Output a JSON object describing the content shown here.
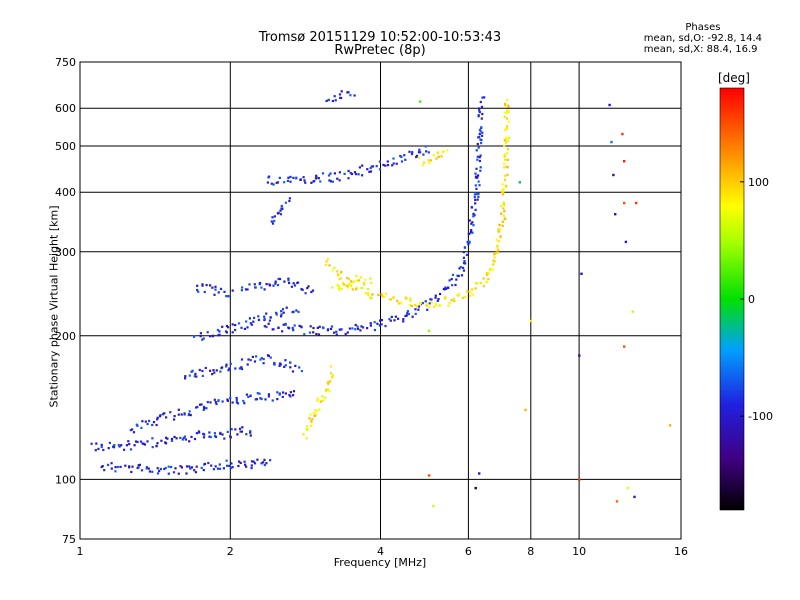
{
  "chart_data": {
    "type": "scatter",
    "title": "Tromsø 20151129 10:52:00-10:53:43",
    "subtitle": "RwPretec (8p)",
    "xlabel": "Frequency [MHz]",
    "ylabel": "Stationary phase Virtual Height [km]",
    "x_scale": "log",
    "y_scale": "log",
    "xlim": [
      1,
      16
    ],
    "ylim": [
      75,
      750
    ],
    "xticks": [
      1,
      2,
      4,
      6,
      8,
      10,
      16
    ],
    "yticks": [
      75,
      100,
      200,
      300,
      400,
      500,
      600,
      750
    ],
    "grid": true,
    "phase_stats": {
      "heading": "Phases",
      "line_o": "mean, sd,O: -92.8, 14.4",
      "line_x": "mean, sd,X:  88.4, 16.9"
    },
    "colorbar": {
      "label": "[deg]",
      "range": [
        -180,
        180
      ],
      "ticks": [
        100,
        0,
        -100
      ]
    },
    "series": [
      {
        "mode": "O",
        "phase": -90,
        "color": "#2040e0",
        "traces": [
          {
            "x": [
              1.1,
              1.3,
              1.5,
              1.7,
              1.9,
              2.0,
              2.2,
              2.4
            ],
            "y": [
              107,
              106,
              105,
              105,
              108,
              108,
              108,
              109
            ]
          },
          {
            "x": [
              1.05,
              1.2,
              1.4,
              1.6,
              1.8,
              2.0,
              2.1,
              2.2
            ],
            "y": [
              118,
              118,
              120,
              122,
              125,
              125,
              127,
              125
            ]
          },
          {
            "x": [
              1.25,
              1.45,
              1.65,
              1.85,
              2.05,
              2.25,
              2.5,
              2.7
            ],
            "y": [
              128,
              135,
              140,
              145,
              147,
              150,
              150,
              152
            ]
          },
          {
            "x": [
              1.6,
              1.9,
              2.1,
              2.3,
              2.45,
              2.6,
              2.75
            ],
            "y": [
              165,
              172,
              175,
              180,
              178,
              175,
              170
            ]
          },
          {
            "x": [
              1.7,
              1.9,
              2.05,
              2.2,
              2.35,
              2.5,
              2.7
            ],
            "y": [
              200,
              205,
              210,
              215,
              220,
              225,
              228
            ]
          },
          {
            "x": [
              2.35,
              2.6,
              2.9,
              3.2,
              3.6,
              4.0,
              4.5,
              5.0,
              5.5,
              5.8,
              6.0,
              6.2,
              6.3,
              6.35
            ],
            "y": [
              212,
              208,
              206,
              206,
              208,
              213,
              222,
              235,
              255,
              280,
              320,
              400,
              520,
              630
            ]
          },
          {
            "x": [
              1.7,
              1.85,
              2.0
            ],
            "y": [
              255,
              250,
              245
            ]
          },
          {
            "x": [
              2.1,
              2.3,
              2.5,
              2.7,
              2.9
            ],
            "y": [
              250,
              255,
              262,
              255,
              248
            ]
          },
          {
            "x": [
              2.35,
              2.6,
              2.9,
              3.2,
              3.5,
              3.8,
              4.2,
              4.6,
              5.0
            ],
            "y": [
              425,
              428,
              430,
              432,
              440,
              452,
              468,
              482,
              495
            ]
          },
          {
            "x": [
              2.4,
              2.5,
              2.6
            ],
            "y": [
              345,
              365,
              390
            ]
          },
          {
            "x": [
              3.1,
              3.3,
              3.5
            ],
            "y": [
              630,
              640,
              648
            ]
          }
        ]
      },
      {
        "mode": "X",
        "phase": 88,
        "color": "#e8e000",
        "traces": [
          {
            "x": [
              2.8,
              2.9,
              3.0,
              3.1,
              3.2
            ],
            "y": [
              125,
              135,
              145,
              155,
              170
            ]
          },
          {
            "x": [
              3.1,
              3.3,
              3.5,
              3.8,
              4.2,
              4.6,
              5.0,
              5.5,
              6.0,
              6.5,
              6.8,
              7.0,
              7.1,
              7.15
            ],
            "y": [
              290,
              270,
              255,
              245,
              240,
              236,
              235,
              238,
              245,
              265,
              300,
              360,
              470,
              630
            ]
          },
          {
            "x": [
              3.2,
              3.4,
              3.6,
              3.8
            ],
            "y": [
              250,
              258,
              265,
              260
            ]
          },
          {
            "x": [
              4.8,
              5.0,
              5.2,
              5.4
            ],
            "y": [
              465,
              475,
              485,
              495
            ]
          }
        ]
      }
    ],
    "sparse_points": [
      {
        "x": 4.8,
        "y": 620,
        "phase": 20
      },
      {
        "x": 5.0,
        "y": 102,
        "phase": 150
      },
      {
        "x": 5.1,
        "y": 88,
        "phase": 60
      },
      {
        "x": 5.0,
        "y": 205,
        "phase": 40
      },
      {
        "x": 6.2,
        "y": 96,
        "phase": -160
      },
      {
        "x": 6.3,
        "y": 103,
        "phase": -100
      },
      {
        "x": 7.6,
        "y": 420,
        "phase": -20
      },
      {
        "x": 7.8,
        "y": 140,
        "phase": 110
      },
      {
        "x": 8.0,
        "y": 215,
        "phase": 90
      },
      {
        "x": 10.0,
        "y": 182,
        "phase": -130
      },
      {
        "x": 10.1,
        "y": 270,
        "phase": -120
      },
      {
        "x": 10.0,
        "y": 100,
        "phase": 160
      },
      {
        "x": 11.5,
        "y": 610,
        "phase": -110
      },
      {
        "x": 11.6,
        "y": 510,
        "phase": -60
      },
      {
        "x": 11.7,
        "y": 435,
        "phase": -120
      },
      {
        "x": 11.8,
        "y": 360,
        "phase": -110
      },
      {
        "x": 11.9,
        "y": 90,
        "phase": 140
      },
      {
        "x": 12.2,
        "y": 530,
        "phase": 160
      },
      {
        "x": 12.3,
        "y": 465,
        "phase": 170
      },
      {
        "x": 12.3,
        "y": 380,
        "phase": 150
      },
      {
        "x": 12.4,
        "y": 315,
        "phase": -100
      },
      {
        "x": 12.3,
        "y": 190,
        "phase": 150
      },
      {
        "x": 12.8,
        "y": 225,
        "phase": 60
      },
      {
        "x": 12.9,
        "y": 92,
        "phase": -100
      },
      {
        "x": 15.2,
        "y": 130,
        "phase": 110
      },
      {
        "x": 13.0,
        "y": 380,
        "phase": 160
      },
      {
        "x": 12.5,
        "y": 96,
        "phase": 70
      }
    ]
  }
}
